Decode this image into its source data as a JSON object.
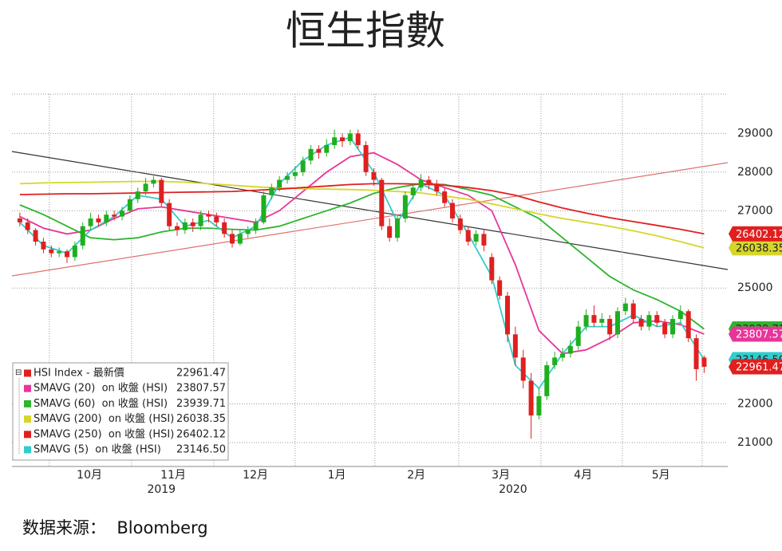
{
  "chart_data": {
    "type": "candlestick",
    "title": "恒生指數",
    "xlim": [
      -2,
      180
    ],
    "xticks": [
      {
        "value": 17.7,
        "label": "10月"
      },
      {
        "value": 39,
        "label": "11月"
      },
      {
        "value": 59.9,
        "label": "12月"
      },
      {
        "value": 80.6,
        "label": "1月"
      },
      {
        "value": 100.8,
        "label": "2月"
      },
      {
        "value": 122.3,
        "label": "3月"
      },
      {
        "value": 143.2,
        "label": "4月"
      },
      {
        "value": 163,
        "label": "5月"
      }
    ],
    "x_gridlines": [
      7.5,
      28.4,
      49.3,
      70,
      90.3,
      111.6,
      132.5,
      153.2,
      173.5
    ],
    "year_labels": [
      {
        "value": 36,
        "label": "2019"
      },
      {
        "value": 125.4,
        "label": "2020"
      }
    ],
    "ylim": [
      20380,
      30020
    ],
    "yticks": [
      21000,
      22000,
      25000,
      27000,
      28000,
      29000
    ],
    "grid": true,
    "candles": {
      "name": "HSI Index - 最新價",
      "color": "#e02020",
      "up_color": "#1fae1f",
      "down_color": "#e02020",
      "last_value_label": "22961.47",
      "x": [
        0,
        2,
        4,
        6,
        8,
        10,
        12,
        14,
        16,
        18,
        20,
        22,
        24,
        26,
        28,
        30,
        32,
        34,
        36,
        38,
        40,
        42,
        44,
        46,
        48,
        50,
        52,
        54,
        56,
        58,
        60,
        62,
        64,
        66,
        68,
        70,
        72,
        74,
        76,
        78,
        80,
        82,
        84,
        86,
        88,
        90,
        92,
        94,
        96,
        98,
        100,
        102,
        104,
        106,
        108,
        110,
        112,
        114,
        116,
        118,
        120,
        122,
        124,
        126,
        128,
        130,
        132,
        134,
        136,
        138,
        140,
        142,
        144,
        146,
        148,
        150,
        152,
        154,
        156,
        158,
        160,
        162,
        164,
        166,
        168,
        170,
        172,
        174
      ],
      "open": [
        26800,
        26700,
        26500,
        26200,
        26000,
        25900,
        25950,
        25800,
        26100,
        26600,
        26800,
        26700,
        26900,
        26850,
        27000,
        27300,
        27500,
        27700,
        27800,
        27200,
        26600,
        26500,
        26700,
        26600,
        26900,
        26850,
        26700,
        26400,
        26150,
        26400,
        26500,
        26700,
        27400,
        27600,
        27800,
        27900,
        28000,
        28300,
        28600,
        28500,
        28700,
        28900,
        28800,
        29000,
        28700,
        28000,
        27800,
        26600,
        26300,
        26800,
        27400,
        27600,
        27800,
        27700,
        27500,
        27200,
        26800,
        26500,
        26200,
        26400,
        25800,
        25200,
        24800,
        23800,
        23200,
        22600,
        21700,
        22200,
        23000,
        23200,
        23300,
        23500,
        24000,
        24300,
        24100,
        24200,
        23800,
        24400,
        24600,
        24200,
        24000,
        24300,
        24100,
        23800,
        24200,
        24400,
        23700,
        23200
      ],
      "high": [
        26950,
        26800,
        26550,
        26300,
        26100,
        26050,
        26000,
        26200,
        26700,
        26950,
        26900,
        27000,
        27000,
        27100,
        27400,
        27600,
        27850,
        27900,
        27850,
        27300,
        26700,
        26800,
        26800,
        27000,
        27000,
        26950,
        26800,
        26500,
        26500,
        26600,
        26800,
        27500,
        27700,
        27900,
        28000,
        28150,
        28400,
        28700,
        28700,
        28850,
        29100,
        29000,
        29100,
        29100,
        28800,
        28100,
        27850,
        26800,
        26900,
        27500,
        27700,
        27950,
        27900,
        27800,
        27600,
        27300,
        26900,
        26600,
        26500,
        26500,
        25900,
        25300,
        24900,
        24000,
        23400,
        22800,
        22400,
        23100,
        23350,
        23450,
        23650,
        24150,
        24450,
        24550,
        24350,
        24300,
        24500,
        24750,
        24700,
        24300,
        24400,
        24400,
        24200,
        24300,
        24550,
        24450,
        23800,
        23250
      ],
      "low": [
        26600,
        26400,
        26100,
        25900,
        25800,
        25800,
        25650,
        25700,
        26000,
        26500,
        26600,
        26600,
        26750,
        26750,
        26950,
        27200,
        27400,
        27600,
        27100,
        26500,
        26350,
        26400,
        26450,
        26500,
        26700,
        26600,
        26300,
        26050,
        26100,
        26300,
        26400,
        26650,
        27300,
        27500,
        27700,
        27800,
        27900,
        28200,
        28350,
        28400,
        28600,
        28650,
        28700,
        28600,
        27900,
        27650,
        26500,
        26200,
        26200,
        26700,
        27300,
        27500,
        27550,
        27400,
        27100,
        26700,
        26400,
        26100,
        26100,
        25950,
        25100,
        24700,
        23600,
        23000,
        22400,
        21100,
        21600,
        22100,
        22900,
        23100,
        23200,
        23400,
        23900,
        24000,
        24000,
        23650,
        23700,
        24300,
        24100,
        23900,
        23900,
        24000,
        23700,
        23700,
        24100,
        23600,
        22600,
        22800
      ],
      "close": [
        26700,
        26500,
        26200,
        26000,
        25900,
        25950,
        25800,
        26100,
        26600,
        26800,
        26700,
        26900,
        26850,
        27000,
        27300,
        27500,
        27700,
        27800,
        27200,
        26600,
        26500,
        26700,
        26600,
        26900,
        26850,
        26700,
        26400,
        26150,
        26400,
        26500,
        26700,
        27400,
        27600,
        27800,
        27900,
        28000,
        28300,
        28600,
        28500,
        28700,
        28900,
        28800,
        29000,
        28700,
        28000,
        27800,
        26600,
        26300,
        26800,
        27400,
        27600,
        27800,
        27700,
        27500,
        27200,
        26800,
        26500,
        26200,
        26400,
        26100,
        25200,
        24800,
        23800,
        23200,
        22600,
        21700,
        22200,
        23000,
        23200,
        23300,
        23500,
        24000,
        24300,
        24100,
        24200,
        23800,
        24400,
        24600,
        24200,
        24000,
        24300,
        24100,
        23800,
        24200,
        24400,
        23700,
        22900,
        22961.47
      ]
    },
    "moving_averages": {
      "x": [
        0,
        6,
        12,
        18,
        24,
        30,
        36,
        42,
        48,
        54,
        60,
        66,
        72,
        78,
        84,
        90,
        96,
        102,
        108,
        114,
        120,
        126,
        132,
        138,
        144,
        150,
        156,
        162,
        168,
        174
      ],
      "series": [
        {
          "name": "SMAVG (20)  on 收盤 (HSI)",
          "color": "#e8359a",
          "last_value_label": "23807.57",
          "values": [
            26850,
            26550,
            26400,
            26500,
            26800,
            27050,
            27100,
            27000,
            26900,
            26800,
            26700,
            27000,
            27500,
            28000,
            28400,
            28500,
            28200,
            27800,
            27600,
            27400,
            27000,
            25600,
            23900,
            23300,
            23400,
            23700,
            24100,
            24150,
            24050,
            23807.57
          ]
        },
        {
          "name": "SMAVG (60)  on 收盤 (HSI)",
          "color": "#2db52d",
          "last_value_label": "23939.71",
          "values": [
            27150,
            26900,
            26600,
            26300,
            26250,
            26300,
            26450,
            26550,
            26550,
            26520,
            26500,
            26600,
            26800,
            27000,
            27200,
            27450,
            27600,
            27700,
            27680,
            27550,
            27400,
            27100,
            26800,
            26300,
            25800,
            25300,
            24950,
            24700,
            24400,
            23939.71
          ]
        },
        {
          "name": "SMAVG (200)  on 收盤 (HSI)",
          "color": "#d6d62a",
          "last_value_label": "26038.35",
          "values": [
            27700,
            27720,
            27730,
            27740,
            27750,
            27760,
            27760,
            27740,
            27700,
            27660,
            27620,
            27590,
            27570,
            27560,
            27550,
            27530,
            27500,
            27460,
            27380,
            27300,
            27180,
            27050,
            26920,
            26800,
            26700,
            26600,
            26480,
            26350,
            26200,
            26038.35
          ]
        },
        {
          "name": "SMAVG (250)  on 收盤 (HSI)",
          "color": "#e02020",
          "last_value_label": "26402.12",
          "values": [
            27420,
            27430,
            27440,
            27440,
            27450,
            27460,
            27470,
            27480,
            27490,
            27500,
            27530,
            27560,
            27600,
            27640,
            27680,
            27700,
            27700,
            27690,
            27660,
            27600,
            27520,
            27400,
            27230,
            27070,
            26940,
            26820,
            26720,
            26620,
            26520,
            26402.12
          ]
        },
        {
          "name": "SMAVG (5)  on 收盤 (HSI)",
          "color": "#33cccc",
          "last_value_label": "23146.50",
          "values": [
            26700,
            26100,
            25900,
            26500,
            26850,
            27400,
            27300,
            26600,
            26750,
            26300,
            26600,
            27700,
            28300,
            28700,
            28900,
            28000,
            26700,
            27700,
            27400,
            26400,
            25300,
            23000,
            22400,
            23300,
            24000,
            24000,
            24300,
            24000,
            24100,
            23146.5
          ]
        }
      ]
    }
  },
  "source": "数据来源：  Bloomberg"
}
